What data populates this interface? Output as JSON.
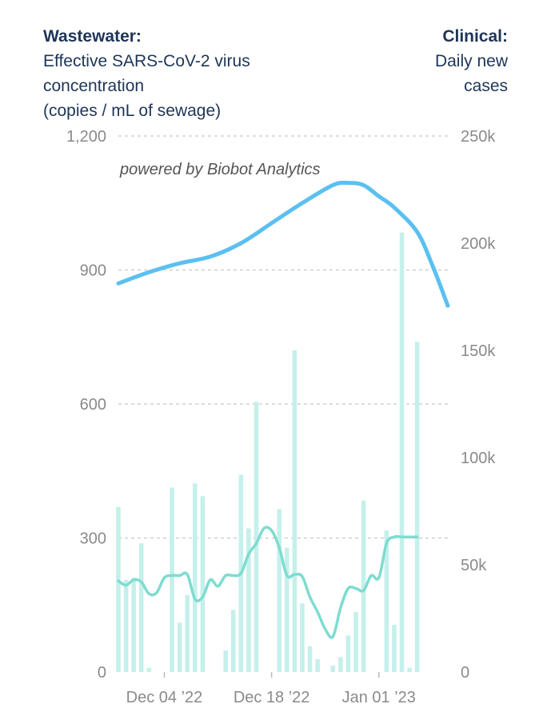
{
  "header": {
    "left_title": "Wastewater:",
    "left_lines": [
      "Effective SARS-CoV-2 virus",
      "concentration",
      "(copies / mL of sewage)"
    ],
    "right_title": "Clinical:",
    "right_lines": [
      "Daily new",
      "cases"
    ]
  },
  "chart_data": {
    "type": "bar+line",
    "annotation": "powered by Biobot Analytics",
    "x_tick_labels": [
      "Dec 04 ’22",
      "Dec 18 ’22",
      "Jan 01 ’23"
    ],
    "x_tick_dates": [
      "2022-12-04",
      "2022-12-18",
      "2023-01-01"
    ],
    "x_range": [
      "2022-11-28",
      "2023-01-10"
    ],
    "left_axis": {
      "ticks": [
        0,
        300,
        600,
        900,
        1200
      ],
      "tick_labels": [
        "0",
        "300",
        "600",
        "900",
        "1,200"
      ],
      "range": [
        0,
        1200
      ]
    },
    "right_axis": {
      "ticks": [
        0,
        50000,
        100000,
        150000,
        200000,
        250000
      ],
      "tick_labels": [
        "0",
        "50k",
        "100k",
        "150k",
        "200k",
        "250k"
      ],
      "range": [
        0,
        250000
      ]
    },
    "grid": true,
    "colors": {
      "wastewater": "#5bc0f0",
      "cases_bars": "#c5f0ec",
      "cases_avg": "#7edcd0",
      "grid": "#d0d0d0"
    },
    "wastewater_series": {
      "axis": "left",
      "dates": [
        "2022-11-28",
        "2022-12-02",
        "2022-12-06",
        "2022-12-10",
        "2022-12-14",
        "2022-12-18",
        "2022-12-22",
        "2022-12-26",
        "2022-12-28",
        "2022-12-30",
        "2023-01-01",
        "2023-01-03",
        "2023-01-06",
        "2023-01-08",
        "2023-01-10"
      ],
      "values": [
        870,
        895,
        915,
        930,
        960,
        1005,
        1050,
        1090,
        1095,
        1090,
        1065,
        1040,
        985,
        910,
        820
      ]
    },
    "daily_cases": {
      "axis": "right",
      "dates": [
        "2022-11-28",
        "2022-11-29",
        "2022-11-30",
        "2022-12-01",
        "2022-12-02",
        "2022-12-05",
        "2022-12-06",
        "2022-12-07",
        "2022-12-08",
        "2022-12-09",
        "2022-12-12",
        "2022-12-13",
        "2022-12-14",
        "2022-12-15",
        "2022-12-16",
        "2022-12-19",
        "2022-12-20",
        "2022-12-21",
        "2022-12-22",
        "2022-12-23",
        "2022-12-24",
        "2022-12-26",
        "2022-12-27",
        "2022-12-28",
        "2022-12-29",
        "2022-12-30",
        "2023-01-02",
        "2023-01-03",
        "2023-01-04",
        "2023-01-05",
        "2023-01-06"
      ],
      "values": [
        77000,
        43000,
        44000,
        60000,
        2000,
        86000,
        23000,
        36000,
        88000,
        82000,
        10000,
        29000,
        92000,
        67000,
        126000,
        76000,
        58000,
        150000,
        32000,
        12000,
        6000,
        3000,
        7000,
        17000,
        28000,
        80000,
        66000,
        22000,
        205000,
        2000,
        154000
      ]
    },
    "cases_7day_avg": {
      "axis": "right",
      "dates": [
        "2022-11-28",
        "2022-11-29",
        "2022-11-30",
        "2022-12-01",
        "2022-12-02",
        "2022-12-03",
        "2022-12-04",
        "2022-12-05",
        "2022-12-06",
        "2022-12-07",
        "2022-12-08",
        "2022-12-09",
        "2022-12-10",
        "2022-12-11",
        "2022-12-12",
        "2022-12-13",
        "2022-12-14",
        "2022-12-15",
        "2022-12-16",
        "2022-12-17",
        "2022-12-18",
        "2022-12-19",
        "2022-12-20",
        "2022-12-21",
        "2022-12-22",
        "2022-12-23",
        "2022-12-24",
        "2022-12-25",
        "2022-12-26",
        "2022-12-27",
        "2022-12-28",
        "2022-12-29",
        "2022-12-30",
        "2022-12-31",
        "2023-01-01",
        "2023-01-02",
        "2023-01-03",
        "2023-01-04",
        "2023-01-05",
        "2023-01-06"
      ],
      "values": [
        42500,
        40500,
        43000,
        42000,
        36500,
        37000,
        44000,
        45000,
        45000,
        45500,
        34000,
        35000,
        43000,
        40000,
        45000,
        45000,
        46000,
        55000,
        60000,
        67000,
        66000,
        58000,
        45000,
        45500,
        44500,
        35000,
        28000,
        20000,
        16500,
        30000,
        39000,
        39000,
        38000,
        45000,
        44000,
        60000,
        63000,
        63000,
        63000,
        63000
      ]
    }
  }
}
